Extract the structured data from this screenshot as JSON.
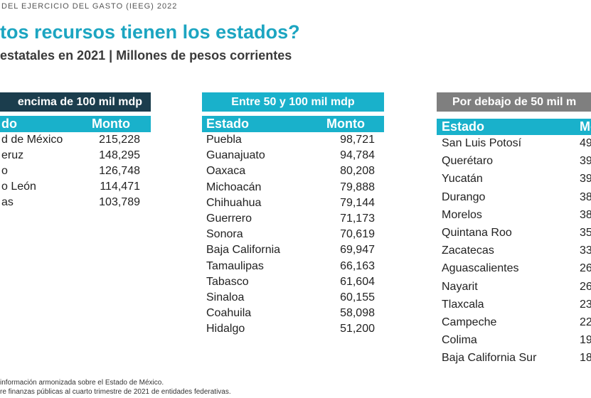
{
  "header": {
    "top": "DEL EJERCICIO DEL GASTO (IEEG) 2022",
    "title": "tos recursos tienen los estados?",
    "subtitle": "estatales en 2021 | Millones de pesos corrientes"
  },
  "tables": [
    {
      "heading": "encima de 100 mil mdp",
      "columns": [
        "do",
        "Monto"
      ],
      "rows": [
        [
          "d de México",
          "215,228"
        ],
        [
          "eruz",
          "148,295"
        ],
        [
          "o",
          "126,748"
        ],
        [
          "o León",
          "114,471"
        ],
        [
          "as",
          "103,789"
        ]
      ]
    },
    {
      "heading": "Entre 50 y 100 mil mdp",
      "columns": [
        "Estado",
        "Monto"
      ],
      "rows": [
        [
          "Puebla",
          "98,721"
        ],
        [
          "Guanajuato",
          "94,784"
        ],
        [
          "Oaxaca",
          "80,208"
        ],
        [
          "Michoacán",
          "79,888"
        ],
        [
          "Chihuahua",
          "79,144"
        ],
        [
          "Guerrero",
          "71,173"
        ],
        [
          "Sonora",
          "70,619"
        ],
        [
          "Baja California",
          "69,947"
        ],
        [
          "Tamaulipas",
          "66,163"
        ],
        [
          "Tabasco",
          "61,604"
        ],
        [
          "Sinaloa",
          "60,155"
        ],
        [
          "Coahuila",
          "58,098"
        ],
        [
          "Hidalgo",
          "51,200"
        ]
      ]
    },
    {
      "heading": "Por debajo de 50 mil m",
      "columns": [
        "Estado",
        "Mon"
      ],
      "rows": [
        [
          "San Luis Potosí",
          "49"
        ],
        [
          "Querétaro",
          "39"
        ],
        [
          "Yucatán",
          "39"
        ],
        [
          "Durango",
          "38"
        ],
        [
          "Morelos",
          "38"
        ],
        [
          "Quintana Roo",
          "35"
        ],
        [
          "Zacatecas",
          "33"
        ],
        [
          "Aguascalientes",
          "26"
        ],
        [
          "Nayarit",
          "26"
        ],
        [
          "Tlaxcala",
          "23"
        ],
        [
          "Campeche",
          "22"
        ],
        [
          "Colima",
          "19"
        ],
        [
          "Baja California Sur",
          "18"
        ]
      ]
    }
  ],
  "footnotes": [
    "información armonizada sobre el Estado de México.",
    "re finanzas públicas al cuarto trimestre de 2021 de entidades federativas."
  ]
}
